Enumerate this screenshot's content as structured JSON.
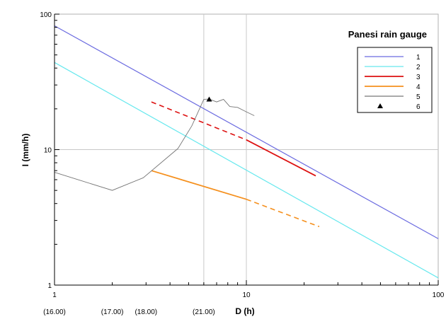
{
  "chart_data": {
    "type": "line",
    "title": "Panesi rain gauge",
    "xlabel": "D (h)",
    "ylabel": "I (mm/h)",
    "x_scale": "log",
    "y_scale": "log",
    "xlim": [
      1,
      100
    ],
    "ylim": [
      1,
      100
    ],
    "grid": true,
    "legend_position": "top-right",
    "x_ticks": [
      {
        "value": 1,
        "label": "1"
      },
      {
        "value": 10,
        "label": "10"
      },
      {
        "value": 100,
        "label": "100"
      }
    ],
    "y_ticks": [
      {
        "value": 1,
        "label": "1"
      },
      {
        "value": 10,
        "label": "10"
      },
      {
        "value": 100,
        "label": "100"
      }
    ],
    "time_ticks": [
      {
        "value": 1,
        "label": "(16.00)"
      },
      {
        "value": 2,
        "label": "(17.00)"
      },
      {
        "value": 3,
        "label": "(18.00)"
      },
      {
        "value": 6,
        "label": "(21.00)"
      }
    ],
    "vertical_reference_lines": [
      6,
      10
    ],
    "series": [
      {
        "name": "1",
        "color": "#6a6ae0",
        "style": "solid",
        "points": [
          [
            1,
            82
          ],
          [
            100,
            2.2
          ]
        ]
      },
      {
        "name": "2",
        "color": "#66e8ee",
        "style": "solid",
        "points": [
          [
            1,
            44
          ],
          [
            100,
            1.13
          ]
        ]
      },
      {
        "name": "3",
        "color": "#dd1111",
        "points": [
          [
            3.2,
            22.5
          ],
          [
            10,
            11.8
          ],
          [
            23,
            6.4
          ]
        ],
        "dashed_points": [
          [
            3.2,
            22.5
          ],
          [
            10,
            11.8
          ]
        ],
        "solid_points": [
          [
            10,
            11.8
          ],
          [
            23,
            6.4
          ]
        ]
      },
      {
        "name": "4",
        "color": "#f5901e",
        "points": [
          [
            3.2,
            7.0
          ],
          [
            10,
            4.3
          ],
          [
            24,
            2.7
          ]
        ],
        "solid_points": [
          [
            3.2,
            7.0
          ],
          [
            10,
            4.3
          ]
        ],
        "dashed_points": [
          [
            10,
            4.3
          ],
          [
            24,
            2.7
          ]
        ]
      },
      {
        "name": "5",
        "color": "#777777",
        "style": "solid",
        "points": [
          [
            1,
            6.8
          ],
          [
            2,
            5.0
          ],
          [
            2.9,
            6.2
          ],
          [
            4.4,
            10.2
          ],
          [
            5.2,
            15
          ],
          [
            6,
            23.5
          ],
          [
            6.4,
            23.6
          ],
          [
            7.0,
            22.5
          ],
          [
            7.6,
            23.5
          ],
          [
            8.2,
            20.8
          ],
          [
            9.0,
            20.5
          ],
          [
            10.0,
            19.0
          ],
          [
            11.0,
            17.8
          ]
        ]
      },
      {
        "name": "6",
        "color": "#000000",
        "style": "marker",
        "points": [
          [
            6.4,
            23.5
          ]
        ]
      }
    ]
  }
}
